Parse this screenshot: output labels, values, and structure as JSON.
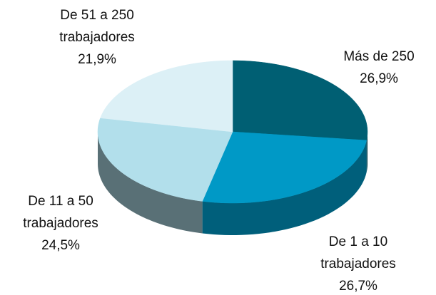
{
  "chart_data": {
    "type": "pie",
    "categories": [
      "Más de 250",
      "De 1 a 10 trabajadores",
      "De 11 a 50 trabajadores",
      "De 51 a 250 trabajadores"
    ],
    "values": [
      26.9,
      26.7,
      24.5,
      21.9
    ],
    "value_labels": [
      "26,9%",
      "26,7%",
      "24,5%",
      "21,9%"
    ],
    "colors": [
      "#005f73",
      "#0099c6",
      "#b2dfeb",
      "#dcf0f6"
    ]
  }
}
